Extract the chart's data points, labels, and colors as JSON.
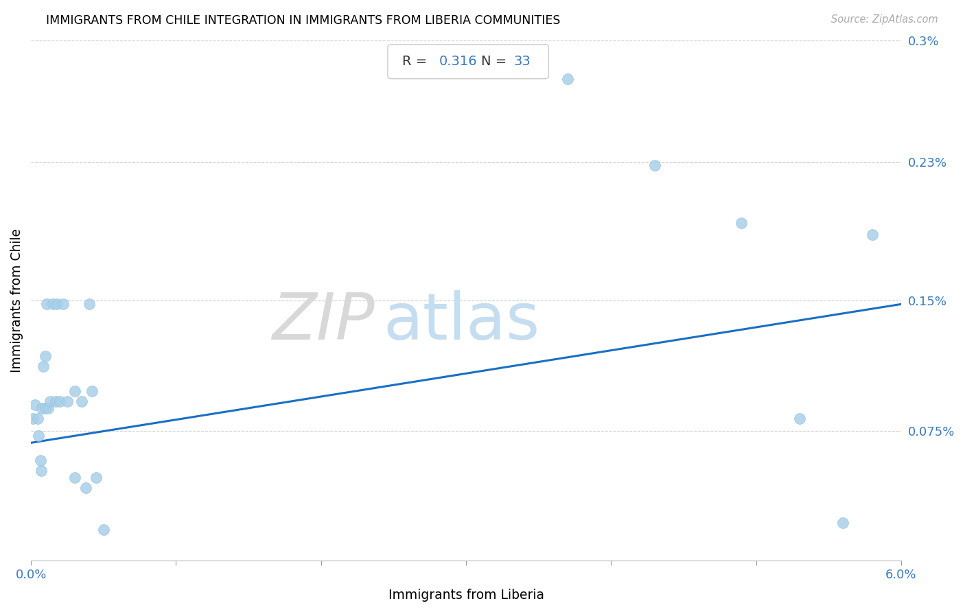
{
  "title": "IMMIGRANTS FROM CHILE INTEGRATION IN IMMIGRANTS FROM LIBERIA COMMUNITIES",
  "source": "Source: ZipAtlas.com",
  "xlabel": "Immigrants from Liberia",
  "ylabel": "Immigrants from Chile",
  "R": 0.316,
  "N": 33,
  "xlim": [
    0.0,
    0.06
  ],
  "ylim": [
    0.0,
    0.003
  ],
  "scatter_color": "#a8cfe8",
  "line_color": "#1a6fc4",
  "watermark_zip": "ZIP",
  "watermark_atlas": "atlas",
  "xtick_positions": [
    0.0,
    0.01,
    0.02,
    0.03,
    0.04,
    0.05,
    0.06
  ],
  "xtick_labels": [
    "0.0%",
    "",
    "",
    "",
    "",
    "",
    "6.0%"
  ],
  "ytick_values": [
    0.00075,
    0.0015,
    0.0023,
    0.003
  ],
  "ytick_labels": [
    "0.075%",
    "0.15%",
    "0.23%",
    "0.3%"
  ],
  "axis_color": "#3a7abf",
  "grid_color": "#cccccc",
  "line_y_start": 0.00068,
  "line_y_end": 0.00148,
  "scatter_x": [
    0.00015,
    0.0003,
    0.00045,
    0.0005,
    0.00065,
    0.0007,
    0.00075,
    0.00085,
    0.001,
    0.001,
    0.0011,
    0.0012,
    0.0013,
    0.0015,
    0.0017,
    0.0018,
    0.002,
    0.0022,
    0.0025,
    0.003,
    0.003,
    0.0035,
    0.0038,
    0.004,
    0.0042,
    0.0045,
    0.005,
    0.037,
    0.043,
    0.049,
    0.053,
    0.056,
    0.058
  ],
  "scatter_y": [
    0.00082,
    0.0009,
    0.00082,
    0.00072,
    0.00058,
    0.00052,
    0.00088,
    0.00112,
    0.00118,
    0.00088,
    0.00148,
    0.00088,
    0.00092,
    0.00148,
    0.00092,
    0.00148,
    0.00092,
    0.00148,
    0.00092,
    0.00098,
    0.00048,
    0.00092,
    0.00042,
    0.00148,
    0.00098,
    0.00048,
    0.00018,
    0.00278,
    0.00228,
    0.00195,
    0.00082,
    0.00022,
    0.00188
  ]
}
